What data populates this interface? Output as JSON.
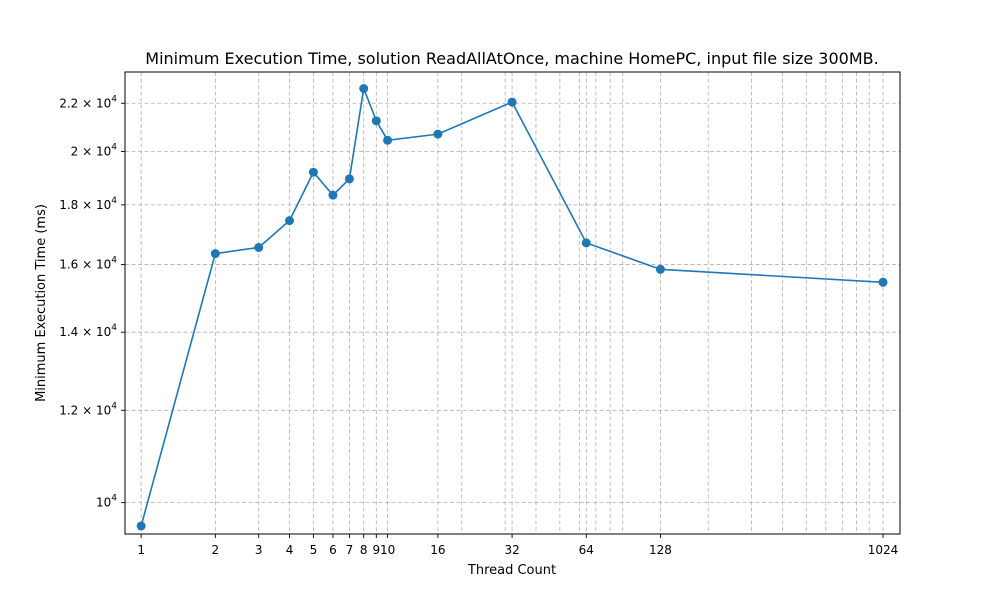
{
  "chart_data": {
    "type": "line",
    "title": "Minimum Execution Time, solution ReadAllAtOnce, machine HomePC, input file size 300MB.",
    "xlabel": "Thread Count",
    "ylabel": "Minimum Execution Time (ms)",
    "xscale": "log",
    "yscale": "log",
    "xlim": [
      0.86,
      1200
    ],
    "ylim": [
      9400,
      23400
    ],
    "grid": true,
    "line_color": "#1f77b4",
    "x_ticks": [
      {
        "value": 1,
        "label": "1"
      },
      {
        "value": 2,
        "label": "2"
      },
      {
        "value": 3,
        "label": "3"
      },
      {
        "value": 4,
        "label": "4"
      },
      {
        "value": 5,
        "label": "5"
      },
      {
        "value": 6,
        "label": "6"
      },
      {
        "value": 7,
        "label": "7"
      },
      {
        "value": 8,
        "label": "8"
      },
      {
        "value": 9,
        "label": "9"
      },
      {
        "value": 10,
        "label": "10"
      },
      {
        "value": 16,
        "label": "16"
      },
      {
        "value": 32,
        "label": "32"
      },
      {
        "value": 64,
        "label": "64"
      },
      {
        "value": 128,
        "label": "128"
      },
      {
        "value": 1024,
        "label": "1024"
      }
    ],
    "x_minor_grid": [
      20,
      30,
      40,
      50,
      60,
      70,
      80,
      90,
      200,
      300,
      400,
      500,
      600,
      700,
      800,
      900
    ],
    "y_ticks": [
      {
        "value": 10000,
        "mantissa": "10",
        "exponent": "4"
      },
      {
        "value": 12000,
        "mantissa": "1.2 × 10",
        "exponent": "4"
      },
      {
        "value": 14000,
        "mantissa": "1.4 × 10",
        "exponent": "4"
      },
      {
        "value": 16000,
        "mantissa": "1.6 × 10",
        "exponent": "4"
      },
      {
        "value": 18000,
        "mantissa": "1.8 × 10",
        "exponent": "4"
      },
      {
        "value": 20000,
        "mantissa": "2 × 10",
        "exponent": "4"
      },
      {
        "value": 22000,
        "mantissa": "2.2 × 10",
        "exponent": "4"
      }
    ],
    "series": [
      {
        "x": [
          1,
          2,
          3,
          4,
          5,
          6,
          7,
          8,
          9,
          10,
          16,
          32,
          64,
          128,
          1024
        ],
        "y": [
          9550,
          16350,
          16550,
          17450,
          19200,
          18350,
          18950,
          22650,
          21250,
          20450,
          20700,
          22050,
          16700,
          15850,
          15450
        ]
      }
    ]
  }
}
